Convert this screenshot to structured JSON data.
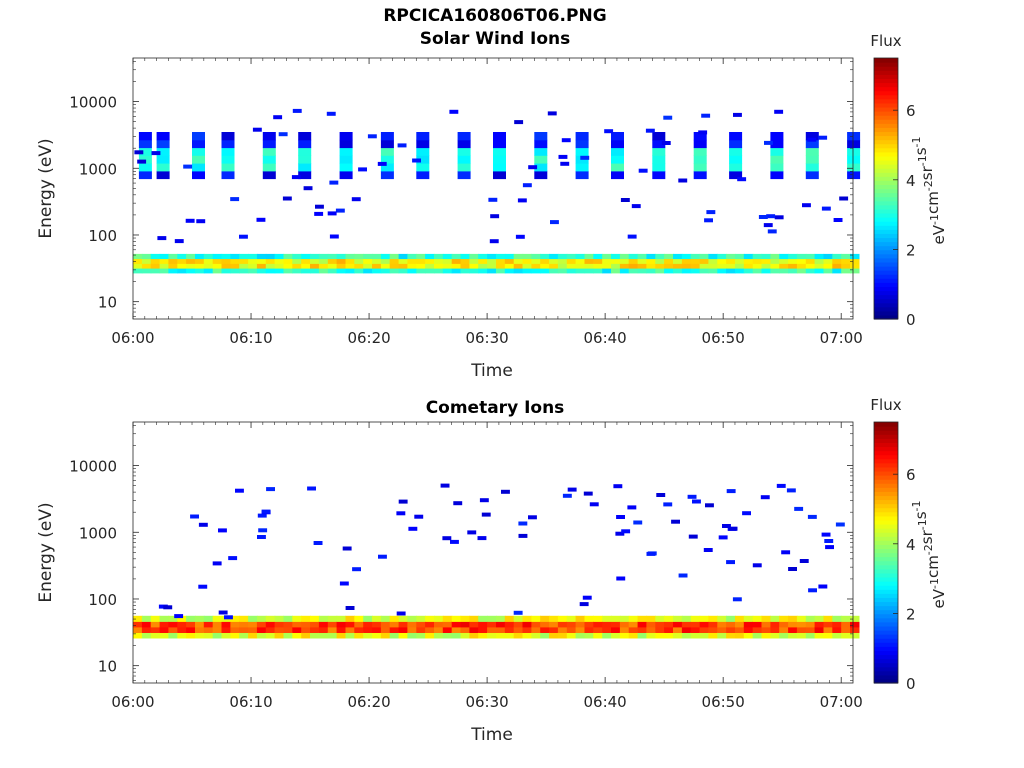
{
  "figure": {
    "title": "RPCICA160806T06.PNG",
    "subtitle": "Solar Wind Ions"
  },
  "chart_data": [
    {
      "type": "heatmap",
      "title": "Solar Wind Ions",
      "xlabel": "Time",
      "ylabel": "Energy (eV)",
      "x_ticks": [
        "06:00",
        "06:10",
        "06:20",
        "06:30",
        "06:40",
        "06:50",
        "07:00"
      ],
      "x_range": [
        "06:00",
        "07:01"
      ],
      "y_ticks": [
        "10",
        "100",
        "1000",
        "10000"
      ],
      "y_scale": "log",
      "ylim": [
        5.5,
        45000
      ],
      "colorbar": {
        "label_top": "Flux",
        "label": "eV-1cm-2sr-1s-1",
        "ticks": [
          "0",
          "2",
          "4",
          "6"
        ],
        "range": [
          0,
          7.5
        ],
        "colormap": "jet"
      },
      "bands": [
        {
          "name": "low-energy band",
          "e_min": 27,
          "e_max": 52,
          "flux": 4.4
        },
        {
          "name": "solar wind peak band",
          "e_min": 700,
          "e_max": 3500,
          "flux": 2.4
        }
      ],
      "sw_packets_min": [
        0.5,
        2,
        5,
        7.5,
        11,
        14,
        17.5,
        21,
        24,
        27.5,
        30.5,
        34,
        37.5,
        40.5,
        44,
        47.5,
        50.5,
        54,
        57,
        60.5
      ]
    },
    {
      "type": "heatmap",
      "title": "Cometary Ions",
      "xlabel": "Time",
      "ylabel": "Energy (eV)",
      "x_ticks": [
        "06:00",
        "06:10",
        "06:20",
        "06:30",
        "06:40",
        "06:50",
        "07:00"
      ],
      "x_range": [
        "06:00",
        "07:01"
      ],
      "y_ticks": [
        "10",
        "100",
        "1000",
        "10000"
      ],
      "y_scale": "log",
      "ylim": [
        5.5,
        45000
      ],
      "colorbar": {
        "label_top": "Flux",
        "label": "eV-1cm-2sr-1s-1",
        "ticks": [
          "0",
          "2",
          "4",
          "6"
        ],
        "range": [
          0,
          7.5
        ],
        "colormap": "jet"
      },
      "bands": [
        {
          "name": "low-energy band",
          "e_min": 26,
          "e_max": 56,
          "flux": 5.8
        }
      ]
    }
  ]
}
